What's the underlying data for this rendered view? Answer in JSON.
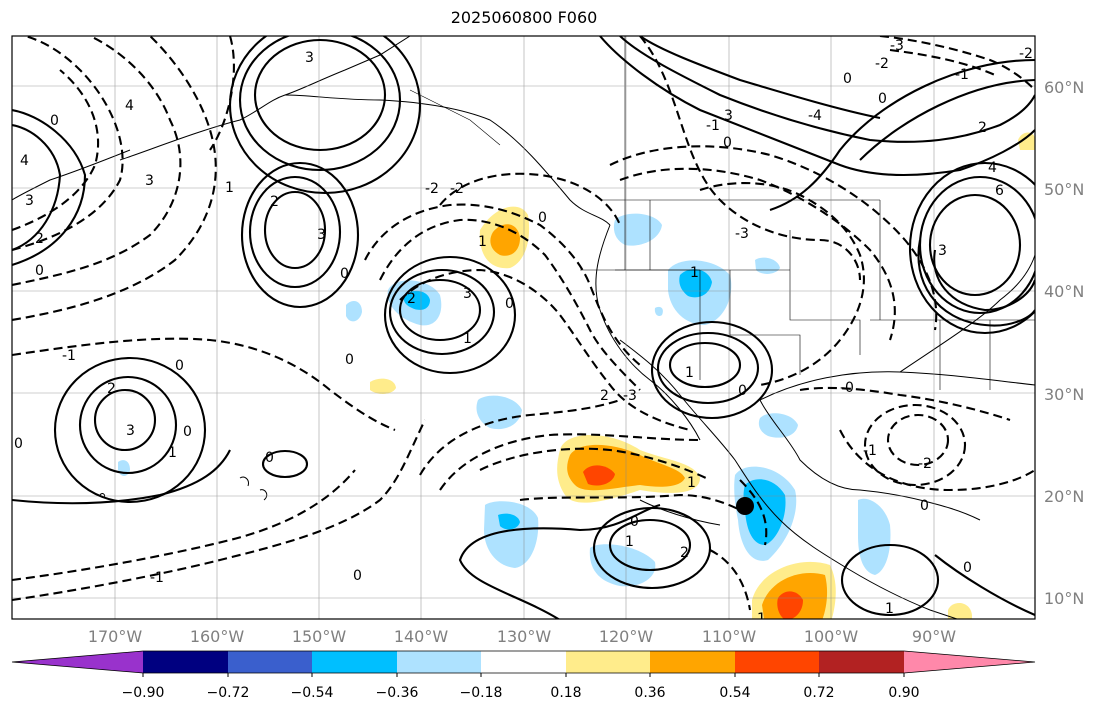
{
  "title": "2025060800 F060",
  "lon_labels": [
    "170°W",
    "160°W",
    "150°W",
    "140°W",
    "130°W",
    "120°W",
    "110°W",
    "100°W",
    "90°W"
  ],
  "lat_labels": [
    "60°N",
    "50°N",
    "40°N",
    "30°N",
    "20°N",
    "10°N"
  ],
  "colorbar": {
    "colors": [
      "#9932cc",
      "#000080",
      "#3a5fcd",
      "#00bfff",
      "#aee2ff",
      "#ffffff",
      "#ffec8b",
      "#ffa500",
      "#ff4500",
      "#b22222",
      "#ff88aa"
    ],
    "tick_labels": [
      "−0.90",
      "−0.72",
      "−0.54",
      "−0.36",
      "−0.18",
      "0.18",
      "0.36",
      "0.54",
      "0.72",
      "0.90"
    ]
  },
  "contour_labels": [
    "3",
    "2",
    "1",
    "0",
    "-1",
    "-2",
    "-3",
    "4",
    "-4"
  ],
  "marker": {
    "lon": -107.5,
    "lat": 19.0
  },
  "colors": {
    "blue_light": "#aee2ff",
    "blue": "#00bfff",
    "yellow": "#ffec8b",
    "orange": "#ffa500",
    "red": "#ff4500"
  }
}
